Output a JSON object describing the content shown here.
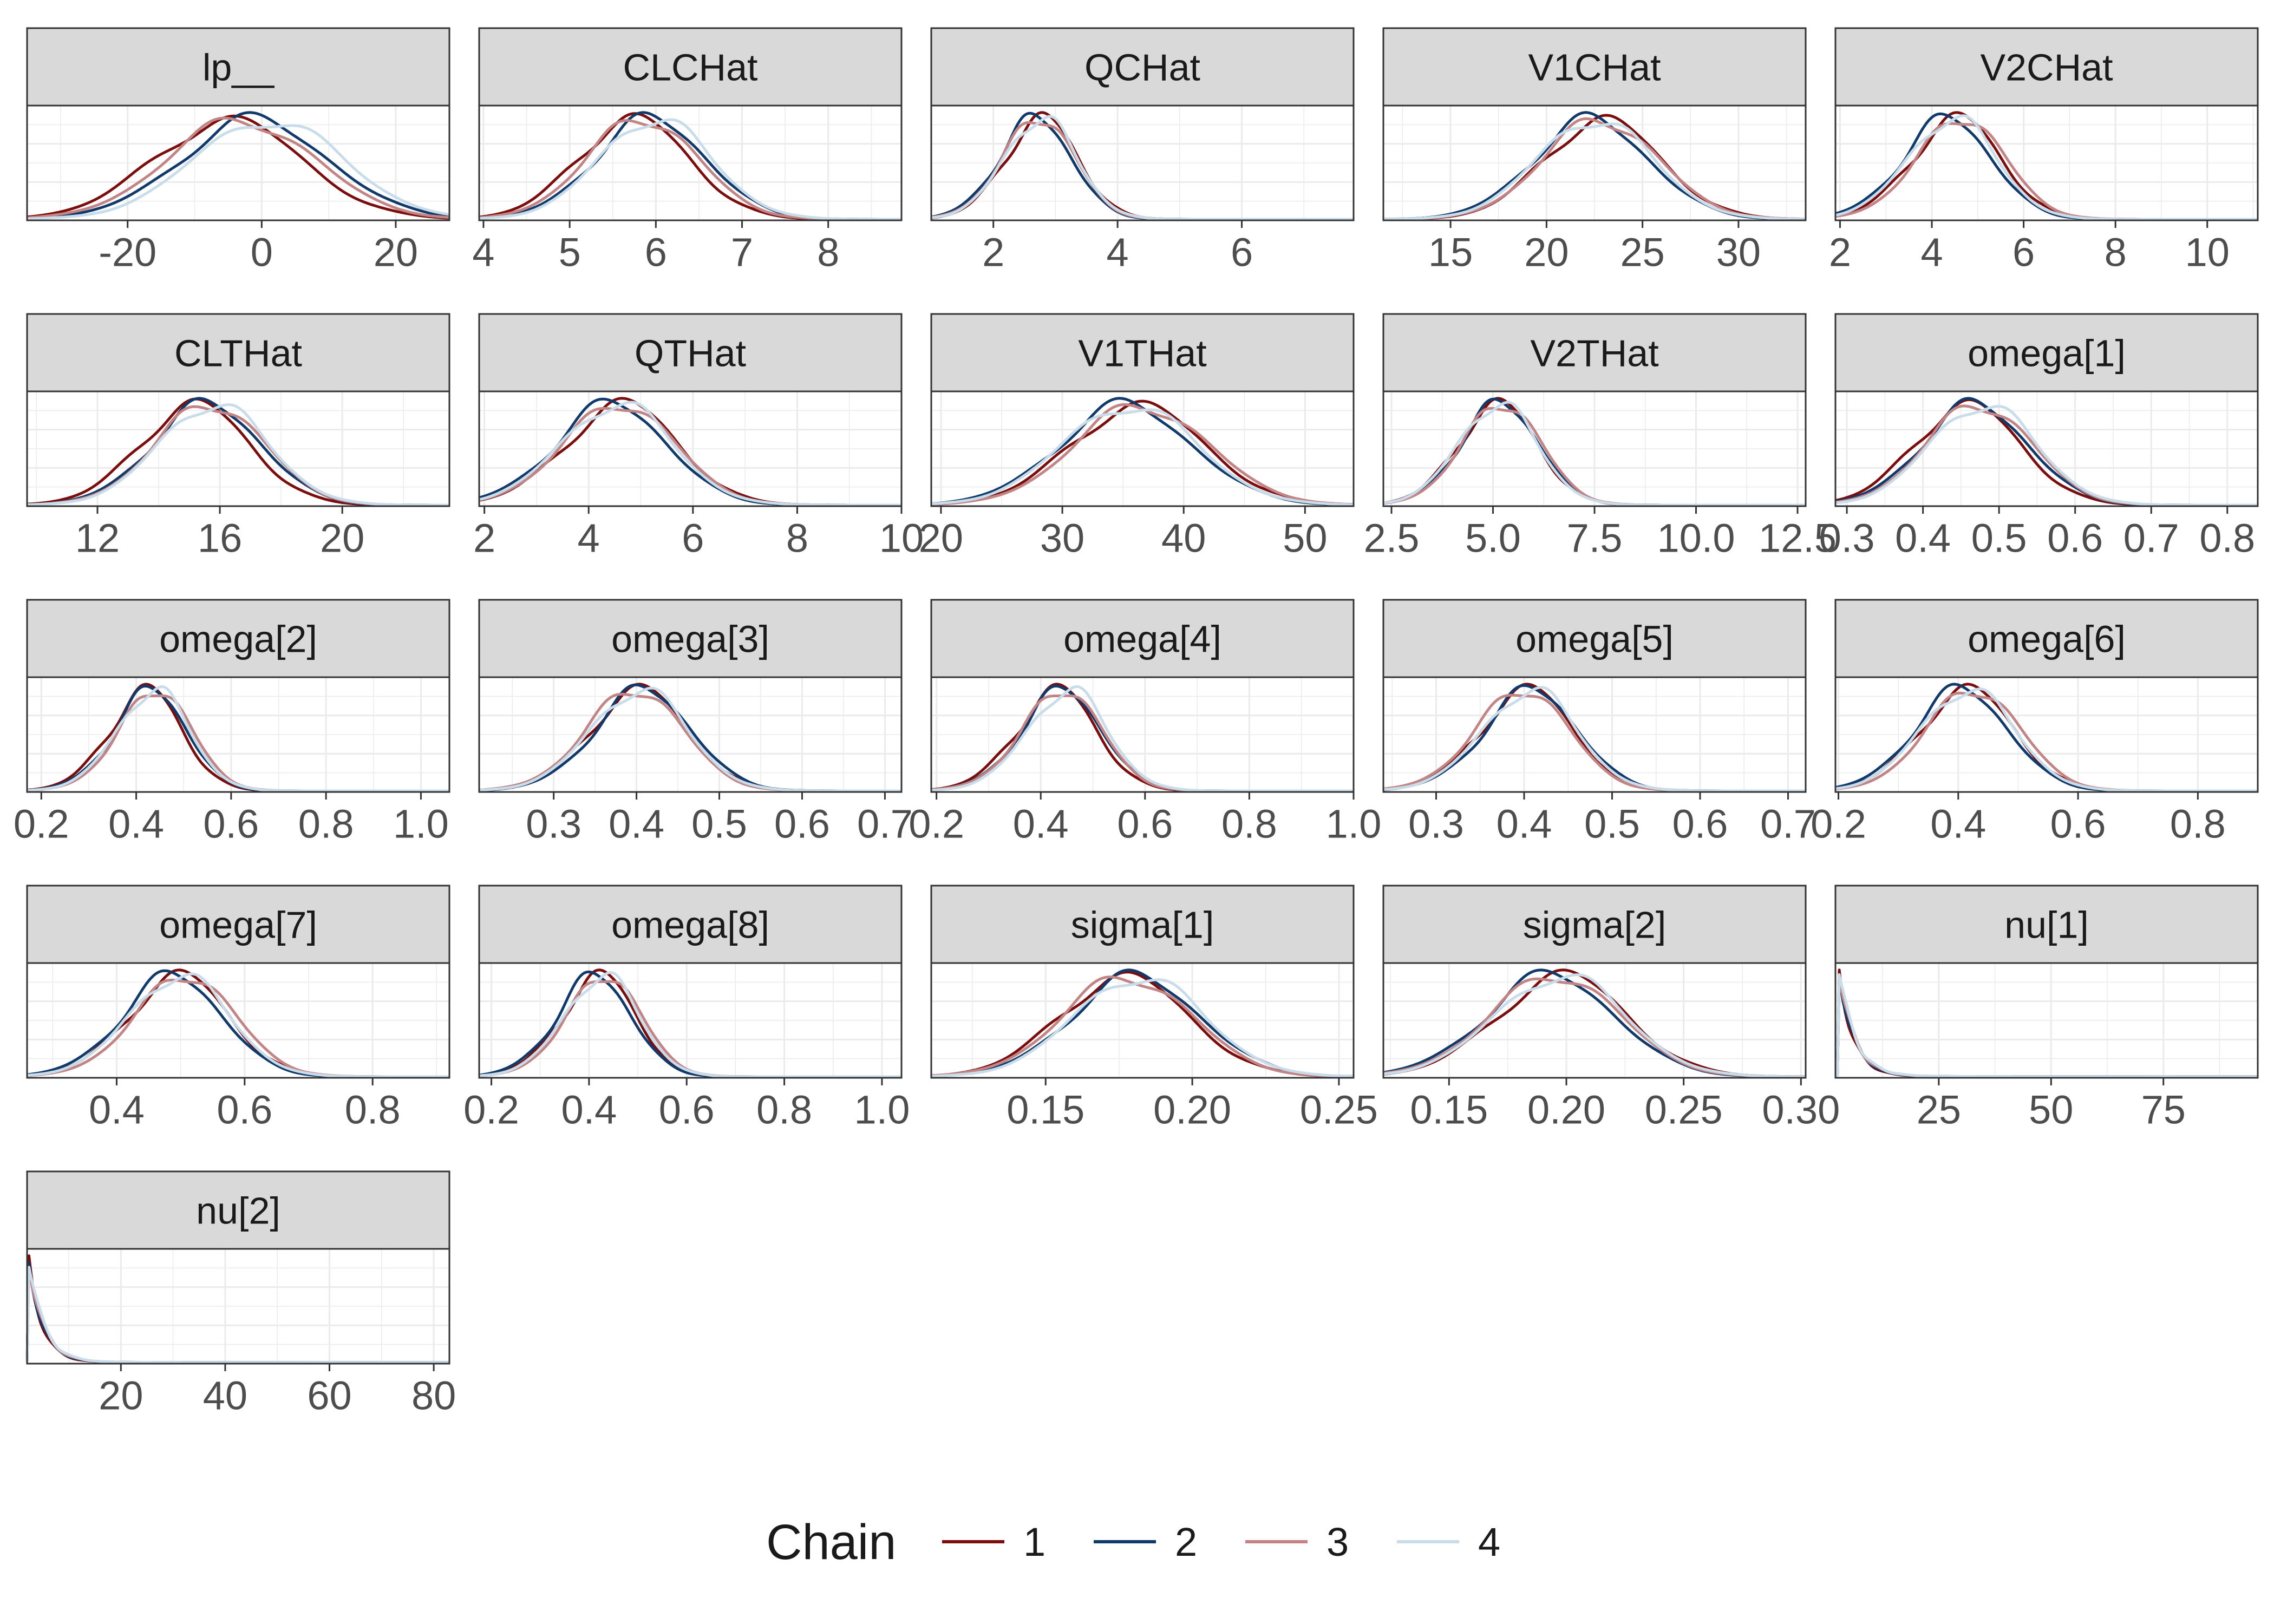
{
  "chart_data": {
    "type": "line",
    "chart_kind": "density",
    "grid": true,
    "legend": {
      "title": "Chain",
      "placement": "bottom",
      "entries": [
        {
          "label": "1",
          "color": "#7B0D0D"
        },
        {
          "label": "2",
          "color": "#0F3A6B"
        },
        {
          "label": "3",
          "color": "#C28484"
        },
        {
          "label": "4",
          "color": "#C8DCEA"
        }
      ]
    },
    "panels": [
      {
        "title": "lp__",
        "xlim": [
          -35,
          28
        ],
        "ticks": [
          -20,
          0,
          20
        ],
        "tick_labels": [
          "-20",
          "0",
          "20"
        ],
        "mean": -2,
        "sd": 11,
        "skew": 0,
        "chain_offsets": [
          -3,
          1,
          -1,
          3
        ]
      },
      {
        "title": "CLCHat",
        "xlim": [
          3.95,
          8.85
        ],
        "ticks": [
          4,
          5,
          6,
          7,
          8
        ],
        "tick_labels": [
          "4",
          "5",
          "6",
          "7",
          "8"
        ],
        "mean": 5.8,
        "sd": 0.65,
        "skew": 0.35,
        "chain_offsets": [
          -0.15,
          0.05,
          -0.05,
          0.1
        ]
      },
      {
        "title": "QCHat",
        "xlim": [
          1.0,
          7.8
        ],
        "ticks": [
          2,
          4,
          6
        ],
        "tick_labels": [
          "2",
          "4",
          "6"
        ],
        "mean": 2.6,
        "sd": 0.6,
        "skew": 0.6,
        "chain_offsets": [
          0.05,
          -0.05,
          0.0,
          0.03
        ]
      },
      {
        "title": "V1CHat",
        "xlim": [
          11.5,
          33.5
        ],
        "ticks": [
          15,
          20,
          25,
          30
        ],
        "tick_labels": [
          "15",
          "20",
          "25",
          "30"
        ],
        "mean": 22.5,
        "sd": 3.0,
        "skew": 0.1,
        "chain_offsets": [
          0.3,
          -0.3,
          0.2,
          -0.1
        ]
      },
      {
        "title": "V2CHat",
        "xlim": [
          1.9,
          11.1
        ],
        "ticks": [
          2,
          4,
          6,
          8,
          10
        ],
        "tick_labels": [
          "2",
          "4",
          "6",
          "8",
          "10"
        ],
        "mean": 4.2,
        "sd": 1.0,
        "skew": 0.7,
        "chain_offsets": [
          0.1,
          -0.1,
          0.2,
          0.0
        ]
      },
      {
        "title": "CLTHat",
        "xlim": [
          9.7,
          23.5
        ],
        "ticks": [
          12,
          16,
          20
        ],
        "tick_labels": [
          "12",
          "16",
          "20"
        ],
        "mean": 15.2,
        "sd": 1.8,
        "skew": 0.4,
        "chain_offsets": [
          -0.3,
          0.1,
          0.2,
          0.3
        ]
      },
      {
        "title": "QTHat",
        "xlim": [
          1.9,
          10.0
        ],
        "ticks": [
          2,
          4,
          6,
          8,
          10
        ],
        "tick_labels": [
          "2",
          "4",
          "6",
          "8",
          "10"
        ],
        "mean": 4.3,
        "sd": 1.1,
        "skew": 0.6,
        "chain_offsets": [
          0.1,
          -0.1,
          0.05,
          0.0
        ]
      },
      {
        "title": "V1THat",
        "xlim": [
          19.2,
          54.0
        ],
        "ticks": [
          20,
          30,
          40,
          50
        ],
        "tick_labels": [
          "20",
          "30",
          "40",
          "50"
        ],
        "mean": 35.5,
        "sd": 5.5,
        "skew": 0.1,
        "chain_offsets": [
          0.5,
          -0.5,
          0.8,
          -0.2
        ]
      },
      {
        "title": "V2THat",
        "xlim": [
          2.3,
          12.7
        ],
        "ticks": [
          2.5,
          5.0,
          7.5,
          10.0,
          12.5
        ],
        "tick_labels": [
          "2.5",
          "5.0",
          "7.5",
          "10.0",
          "12.5"
        ],
        "mean": 4.9,
        "sd": 1.0,
        "skew": 0.6,
        "chain_offsets": [
          0.0,
          0.05,
          0.1,
          0.0
        ]
      },
      {
        "title": "omega[1]",
        "xlim": [
          0.285,
          0.84
        ],
        "ticks": [
          0.3,
          0.4,
          0.5,
          0.6,
          0.7,
          0.8
        ],
        "tick_labels": [
          "0.3",
          "0.4",
          "0.5",
          "0.6",
          "0.7",
          "0.8"
        ],
        "mean": 0.46,
        "sd": 0.07,
        "skew": 0.3,
        "chain_offsets": [
          -0.01,
          0.0,
          0.005,
          0.01
        ]
      },
      {
        "title": "omega[2]",
        "xlim": [
          0.17,
          1.06
        ],
        "ticks": [
          0.2,
          0.4,
          0.6,
          0.8,
          1.0
        ],
        "tick_labels": [
          "0.2",
          "0.4",
          "0.6",
          "0.8",
          "1.0"
        ],
        "mean": 0.41,
        "sd": 0.08,
        "skew": 0.8,
        "chain_offsets": [
          -0.01,
          0.0,
          0.01,
          0.005
        ]
      },
      {
        "title": "omega[3]",
        "xlim": [
          0.21,
          0.72
        ],
        "ticks": [
          0.3,
          0.4,
          0.5,
          0.6,
          0.7
        ],
        "tick_labels": [
          "0.3",
          "0.4",
          "0.5",
          "0.6",
          "0.7"
        ],
        "mean": 0.39,
        "sd": 0.06,
        "skew": 0.6,
        "chain_offsets": [
          0.0,
          0.005,
          -0.005,
          0.0
        ]
      },
      {
        "title": "omega[4]",
        "xlim": [
          0.19,
          1.0
        ],
        "ticks": [
          0.2,
          0.4,
          0.6,
          0.8,
          1.0
        ],
        "tick_labels": [
          "0.2",
          "0.4",
          "0.6",
          "0.8",
          "1.0"
        ],
        "mean": 0.42,
        "sd": 0.08,
        "skew": 0.8,
        "chain_offsets": [
          -0.01,
          0.0,
          0.0,
          0.01
        ]
      },
      {
        "title": "omega[5]",
        "xlim": [
          0.24,
          0.72
        ],
        "ticks": [
          0.3,
          0.4,
          0.5,
          0.6,
          0.7
        ],
        "tick_labels": [
          "0.3",
          "0.4",
          "0.5",
          "0.6",
          "0.7"
        ],
        "mean": 0.39,
        "sd": 0.055,
        "skew": 0.7,
        "chain_offsets": [
          0.0,
          0.005,
          -0.005,
          0.003
        ]
      },
      {
        "title": "omega[6]",
        "xlim": [
          0.195,
          0.9
        ],
        "ticks": [
          0.2,
          0.4,
          0.6,
          0.8
        ],
        "tick_labels": [
          "0.2",
          "0.4",
          "0.6",
          "0.8"
        ],
        "mean": 0.4,
        "sd": 0.08,
        "skew": 0.5,
        "chain_offsets": [
          0.0,
          -0.01,
          0.01,
          0.0
        ]
      },
      {
        "title": "omega[7]",
        "xlim": [
          0.26,
          0.92
        ],
        "ticks": [
          0.4,
          0.6,
          0.8
        ],
        "tick_labels": [
          "0.4",
          "0.6",
          "0.8"
        ],
        "mean": 0.48,
        "sd": 0.08,
        "skew": 0.6,
        "chain_offsets": [
          0.0,
          -0.01,
          0.01,
          0.0
        ]
      },
      {
        "title": "omega[8]",
        "xlim": [
          0.175,
          1.04
        ],
        "ticks": [
          0.2,
          0.4,
          0.6,
          0.8,
          1.0
        ],
        "tick_labels": [
          "0.2",
          "0.4",
          "0.6",
          "0.8",
          "1.0"
        ],
        "mean": 0.4,
        "sd": 0.08,
        "skew": 0.8,
        "chain_offsets": [
          0.0,
          -0.01,
          0.01,
          0.005
        ]
      },
      {
        "title": "sigma[1]",
        "xlim": [
          0.111,
          0.255
        ],
        "ticks": [
          0.15,
          0.2,
          0.25
        ],
        "tick_labels": [
          "0.15",
          "0.20",
          "0.25"
        ],
        "mean": 0.177,
        "sd": 0.022,
        "skew": 0.2,
        "chain_offsets": [
          -0.002,
          0.002,
          -0.001,
          0.003
        ]
      },
      {
        "title": "sigma[2]",
        "xlim": [
          0.122,
          0.302
        ],
        "ticks": [
          0.15,
          0.2,
          0.25,
          0.3
        ],
        "tick_labels": [
          "0.15",
          "0.20",
          "0.25",
          "0.30"
        ],
        "mean": 0.19,
        "sd": 0.028,
        "skew": 0.5,
        "chain_offsets": [
          0.003,
          -0.002,
          0.0,
          0.002
        ]
      },
      {
        "title": "nu[1]",
        "xlim": [
          2,
          96
        ],
        "ticks": [
          25,
          50,
          75
        ],
        "tick_labels": [
          "25",
          "50",
          "75"
        ],
        "kind": "decay",
        "start": 2.5,
        "scale": 3.2,
        "chain_offsets": [
          0,
          0.2,
          -0.1,
          0.1
        ]
      },
      {
        "title": "nu[2]",
        "xlim": [
          2,
          83
        ],
        "ticks": [
          20,
          40,
          60,
          80
        ],
        "tick_labels": [
          "20",
          "40",
          "60",
          "80"
        ],
        "kind": "decay",
        "start": 2.2,
        "scale": 2.6,
        "chain_offsets": [
          0,
          0.15,
          -0.1,
          0.1
        ]
      }
    ]
  }
}
